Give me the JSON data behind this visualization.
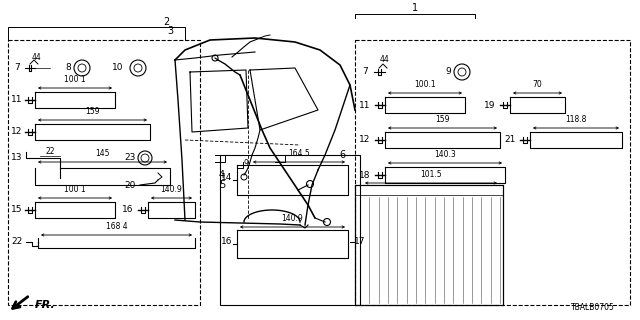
{
  "background_color": "#ffffff",
  "line_color": "#000000",
  "fig_width": 6.4,
  "fig_height": 3.2,
  "dpi": 100,
  "diagram_code": "TBALB0705"
}
